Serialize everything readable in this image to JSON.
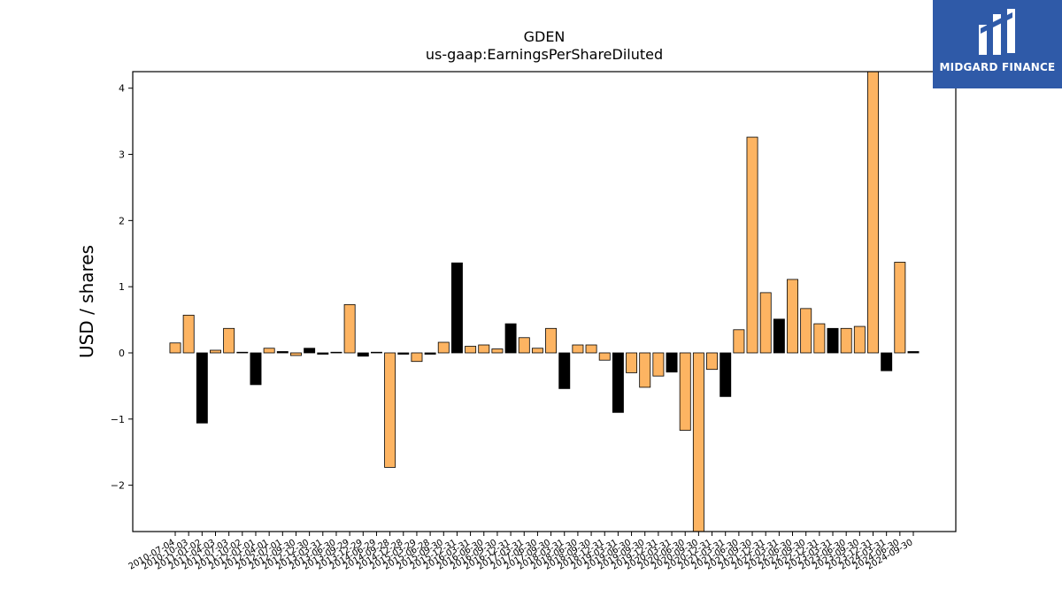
{
  "chart_data": {
    "type": "bar",
    "title": "GDEN",
    "subtitle": "us-gaap:EarningsPerShareDiluted",
    "xlabel": "",
    "ylabel": "USD / shares",
    "ylim": [
      -2.7,
      4.25
    ],
    "yticks": [
      -2,
      -1,
      0,
      1,
      2,
      3,
      4
    ],
    "grid": false,
    "colors": {
      "bar": "#fdb462",
      "highlight": "#000000",
      "edge": "#000000"
    },
    "categories": [
      "2010-07-04",
      "2010-10-03",
      "2011-01-02",
      "2011-04-03",
      "2011-07-03",
      "2011-10-02",
      "2012-01-01",
      "2012-04-01",
      "2012-07-01",
      "2012-09-30",
      "2012-12-30",
      "2013-03-31",
      "2013-06-30",
      "2013-09-29",
      "2013-12-29",
      "2014-06-29",
      "2014-09-28",
      "2014-12-28",
      "2015-03-29",
      "2015-06-28",
      "2015-09-30",
      "2015-12-31",
      "2016-03-31",
      "2016-06-30",
      "2016-09-30",
      "2016-12-31",
      "2017-03-31",
      "2017-06-30",
      "2017-09-30",
      "2018-03-31",
      "2018-06-30",
      "2018-09-30",
      "2018-12-31",
      "2019-03-31",
      "2019-06-30",
      "2019-09-30",
      "2019-12-31",
      "2020-03-31",
      "2020-06-30",
      "2020-09-30",
      "2020-12-31",
      "2021-03-31",
      "2021-06-30",
      "2021-09-30",
      "2021-12-31",
      "2022-03-31",
      "2022-06-30",
      "2022-09-30",
      "2022-12-31",
      "2023-03-31",
      "2023-06-30",
      "2023-09-30",
      "2023-12-31",
      "2024-03-31",
      "2024-06-30",
      "2024-09-30"
    ],
    "values": [
      0.15,
      0.57,
      -1.06,
      0.04,
      0.37,
      0.01,
      -0.48,
      0.07,
      0.02,
      -0.04,
      0.07,
      -0.02,
      0.01,
      0.73,
      -0.05,
      0.01,
      -1.73,
      -0.02,
      -0.13,
      -0.02,
      0.16,
      1.36,
      0.1,
      0.12,
      0.06,
      0.44,
      0.23,
      0.07,
      0.37,
      -0.54,
      0.12,
      0.12,
      -0.11,
      -0.9,
      -0.3,
      -0.52,
      -0.35,
      -0.29,
      -1.17,
      -2.7,
      -0.25,
      -0.66,
      0.35,
      3.26,
      0.91,
      0.51,
      1.11,
      0.67,
      0.44,
      0.37,
      0.37,
      0.4,
      4.25,
      -0.27,
      1.37,
      0.02
    ],
    "highlight": [
      false,
      false,
      true,
      false,
      false,
      true,
      true,
      false,
      true,
      false,
      true,
      true,
      false,
      false,
      true,
      false,
      false,
      true,
      false,
      true,
      false,
      true,
      false,
      false,
      false,
      true,
      false,
      false,
      false,
      true,
      false,
      false,
      false,
      true,
      false,
      false,
      false,
      true,
      false,
      false,
      false,
      true,
      false,
      false,
      false,
      true,
      false,
      false,
      false,
      true,
      false,
      false,
      false,
      true,
      false,
      true
    ],
    "tick_labels": [
      "2010-07-04",
      "2010-10-03",
      "2011-01-02",
      "2011-04-03",
      "2011-07-03",
      "2011-10-02",
      "2012-01-01",
      "2012-04-01",
      "2012-07-01",
      "2012-09-30",
      "2012-12-30",
      "2013-03-31",
      "2013-06-30",
      "2013-09-29",
      "2013-12-29",
      "2014-06-29",
      "2014-09-28",
      "2014-12-28",
      "2015-03-29",
      "2015-06-28",
      "2015-09-30",
      "2015-12-31",
      "2016-03-31",
      "2016-06-30",
      "2016-09-30",
      "2016-12-31",
      "2017-03-31",
      "2017-06-30",
      "2017-09-30",
      "2018-03-31",
      "2018-06-30",
      "2018-09-30",
      "2018-12-31",
      "2019-03-31",
      "2019-06-30",
      "2019-09-30",
      "2019-12-31",
      "2020-03-31",
      "2020-06-30",
      "2020-09-30",
      "2020-12-31",
      "2021-03-31",
      "2021-06-30",
      "2021-09-30",
      "2021-12-31",
      "2022-03-31",
      "2022-06-30",
      "2022-09-30",
      "2022-12-31",
      "2023-03-31",
      "2023-06-30",
      "2023-09-30",
      "2023-12-31",
      "2024-03-31",
      "2024-06-30",
      "2024-09-30"
    ]
  },
  "logo": {
    "text": "MIDGARD FINANCE",
    "color": "#2f5aa8"
  }
}
